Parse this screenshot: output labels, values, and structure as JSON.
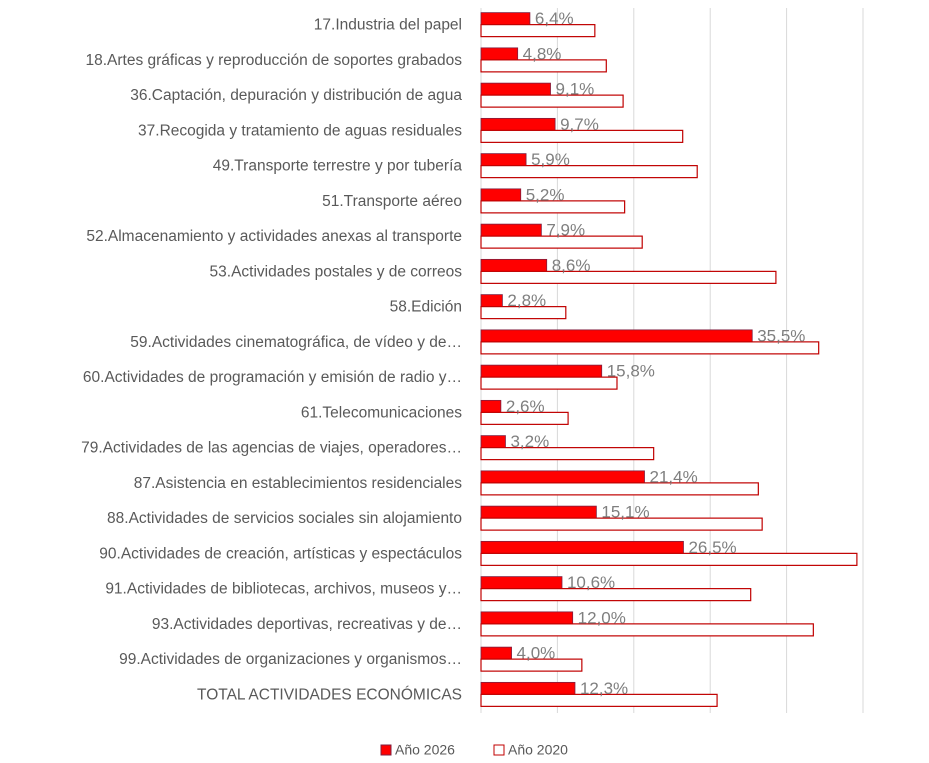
{
  "chart_data": {
    "type": "bar",
    "orientation": "horizontal",
    "categories": [
      "17.Industria del papel",
      "18.Artes gráficas y reproducción de soportes grabados",
      "36.Captación, depuración y distribución de agua",
      "37.Recogida y tratamiento de aguas residuales",
      "49.Transporte terrestre y por tubería",
      "51.Transporte aéreo",
      "52.Almacenamiento y actividades anexas al transporte",
      "53.Actividades postales y de correos",
      "58.Edición",
      "59.Actividades cinematográfica, de vídeo y de…",
      "60.Actividades de programación y emisión de radio y…",
      "61.Telecomunicaciones",
      "79.Actividades de las agencias de viajes, operadores…",
      "87.Asistencia en establecimientos residenciales",
      "88.Actividades de servicios sociales sin alojamiento",
      "90.Actividades de creación, artísticas y espectáculos",
      "91.Actividades de bibliotecas, archivos, museos y…",
      "93.Actividades deportivas, recreativas y de…",
      "99.Actividades de organizaciones y organismos…",
      "TOTAL ACTIVIDADES ECONÓMICAS"
    ],
    "series": [
      {
        "name": "Año 2026",
        "color": "#ff0000",
        "values": [
          6.4,
          4.8,
          9.1,
          9.7,
          5.9,
          5.2,
          7.9,
          8.6,
          2.8,
          35.5,
          15.8,
          2.6,
          3.2,
          21.4,
          15.1,
          26.5,
          10.6,
          12.0,
          4.0,
          12.3
        ],
        "value_labels": [
          "6,4%",
          "4,8%",
          "9,1%",
          "9,7%",
          "5,9%",
          "5,2%",
          "7,9%",
          "8,6%",
          "2,8%",
          "35,5%",
          "15,8%",
          "2,6%",
          "3,2%",
          "21,4%",
          "15,1%",
          "26,5%",
          "10,6%",
          "12,0%",
          "4,0%",
          "12,3%"
        ]
      },
      {
        "name": "Año 2020",
        "color": "#c00000",
        "values": [
          14.9,
          16.4,
          18.6,
          26.4,
          28.3,
          18.8,
          21.1,
          38.6,
          11.1,
          44.2,
          17.8,
          11.4,
          22.6,
          36.3,
          36.8,
          49.2,
          35.3,
          43.5,
          13.2,
          30.9
        ]
      }
    ],
    "xlim": [
      0,
      50
    ],
    "xticks": [
      0,
      10,
      20,
      30,
      40,
      50
    ],
    "grid": true,
    "legend": "bottom"
  }
}
